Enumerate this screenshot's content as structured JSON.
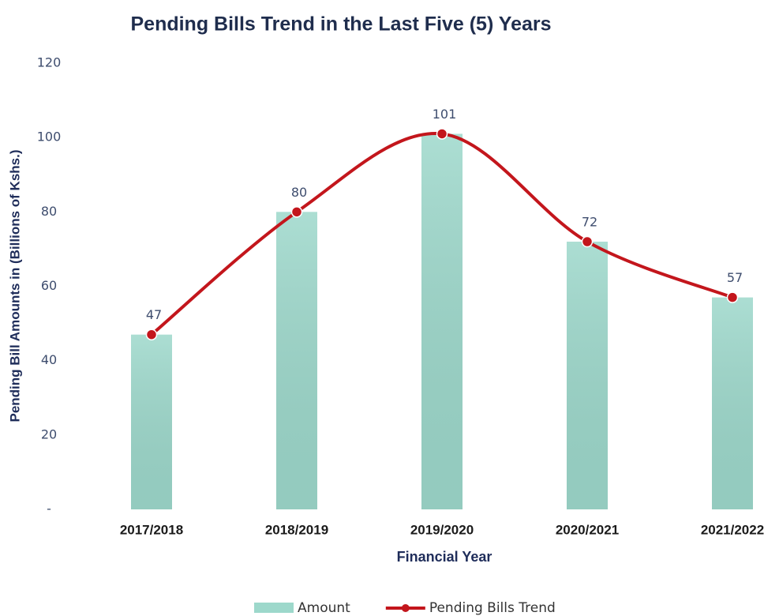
{
  "chart_data": {
    "type": "bar_line",
    "title": "Pending Bills Trend in the Last Five (5) Years",
    "x_label": "Financial Year",
    "y_label": "Pending Bill Amounts in (Billions of Kshs.)",
    "categories": [
      "2017/2018",
      "2018/2019",
      "2019/2020",
      "2020/2021",
      "2021/2022"
    ],
    "series": [
      {
        "name": "Amount",
        "type": "bar",
        "color": "#9dd8cb",
        "values": [
          47,
          80,
          101,
          72,
          57
        ]
      },
      {
        "name": "Pending Bills Trend",
        "type": "line",
        "color": "#c3161c",
        "values": [
          47,
          80,
          101,
          72,
          57
        ]
      }
    ],
    "ylim": [
      0,
      120
    ],
    "yticks": [
      {
        "value": 0,
        "label": "-"
      },
      20,
      40,
      60,
      80,
      100,
      120
    ],
    "grid": false,
    "legend": "bottom"
  }
}
